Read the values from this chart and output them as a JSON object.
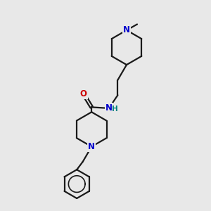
{
  "background_color": "#e8e8e8",
  "bond_color": "#1a1a1a",
  "N_color": "#0000cc",
  "O_color": "#cc0000",
  "H_color": "#008080",
  "line_width": 1.6,
  "font_size_label": 8.5,
  "fig_w": 3.0,
  "fig_h": 3.0,
  "dpi": 100,
  "xlim": [
    0,
    10
  ],
  "ylim": [
    0,
    10
  ]
}
